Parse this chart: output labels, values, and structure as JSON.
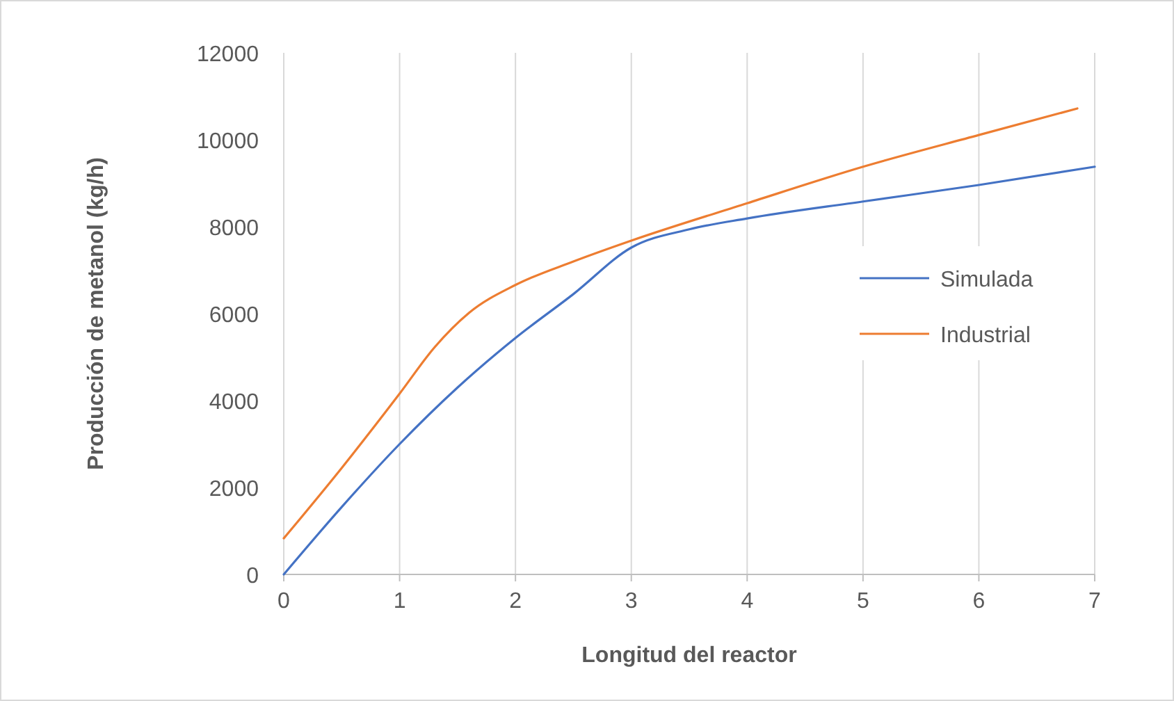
{
  "chart_data": {
    "type": "line",
    "xlabel": "Longitud  del reactor",
    "ylabel": "Producción de metanol (kg/h)",
    "xlim": [
      0,
      7
    ],
    "xticks": [
      0,
      1,
      2,
      3,
      4,
      5,
      6,
      7
    ],
    "ylim": [
      0,
      12000
    ],
    "yticks": [
      0,
      2000,
      4000,
      6000,
      8000,
      10000,
      12000
    ],
    "grid": "x",
    "legend": "right",
    "marker": "none",
    "line_style": "solid",
    "series": [
      {
        "name": "Simulada",
        "color": "#4472c4",
        "x": [
          0,
          0.5,
          1,
          1.5,
          2,
          2.5,
          3,
          3.5,
          4,
          5,
          6,
          7
        ],
        "values": [
          0,
          1550,
          3000,
          4300,
          5440,
          6450,
          7520,
          7940,
          8190,
          8580,
          8960,
          9380
        ]
      },
      {
        "name": "Industrial",
        "color": "#ed7d31",
        "x": [
          0,
          0.5,
          1,
          1.3,
          1.6,
          2,
          2.5,
          3,
          4,
          5,
          6,
          6.85
        ],
        "values": [
          830,
          2450,
          4160,
          5220,
          6020,
          6660,
          7200,
          7680,
          8540,
          9380,
          10110,
          10720
        ]
      }
    ]
  }
}
